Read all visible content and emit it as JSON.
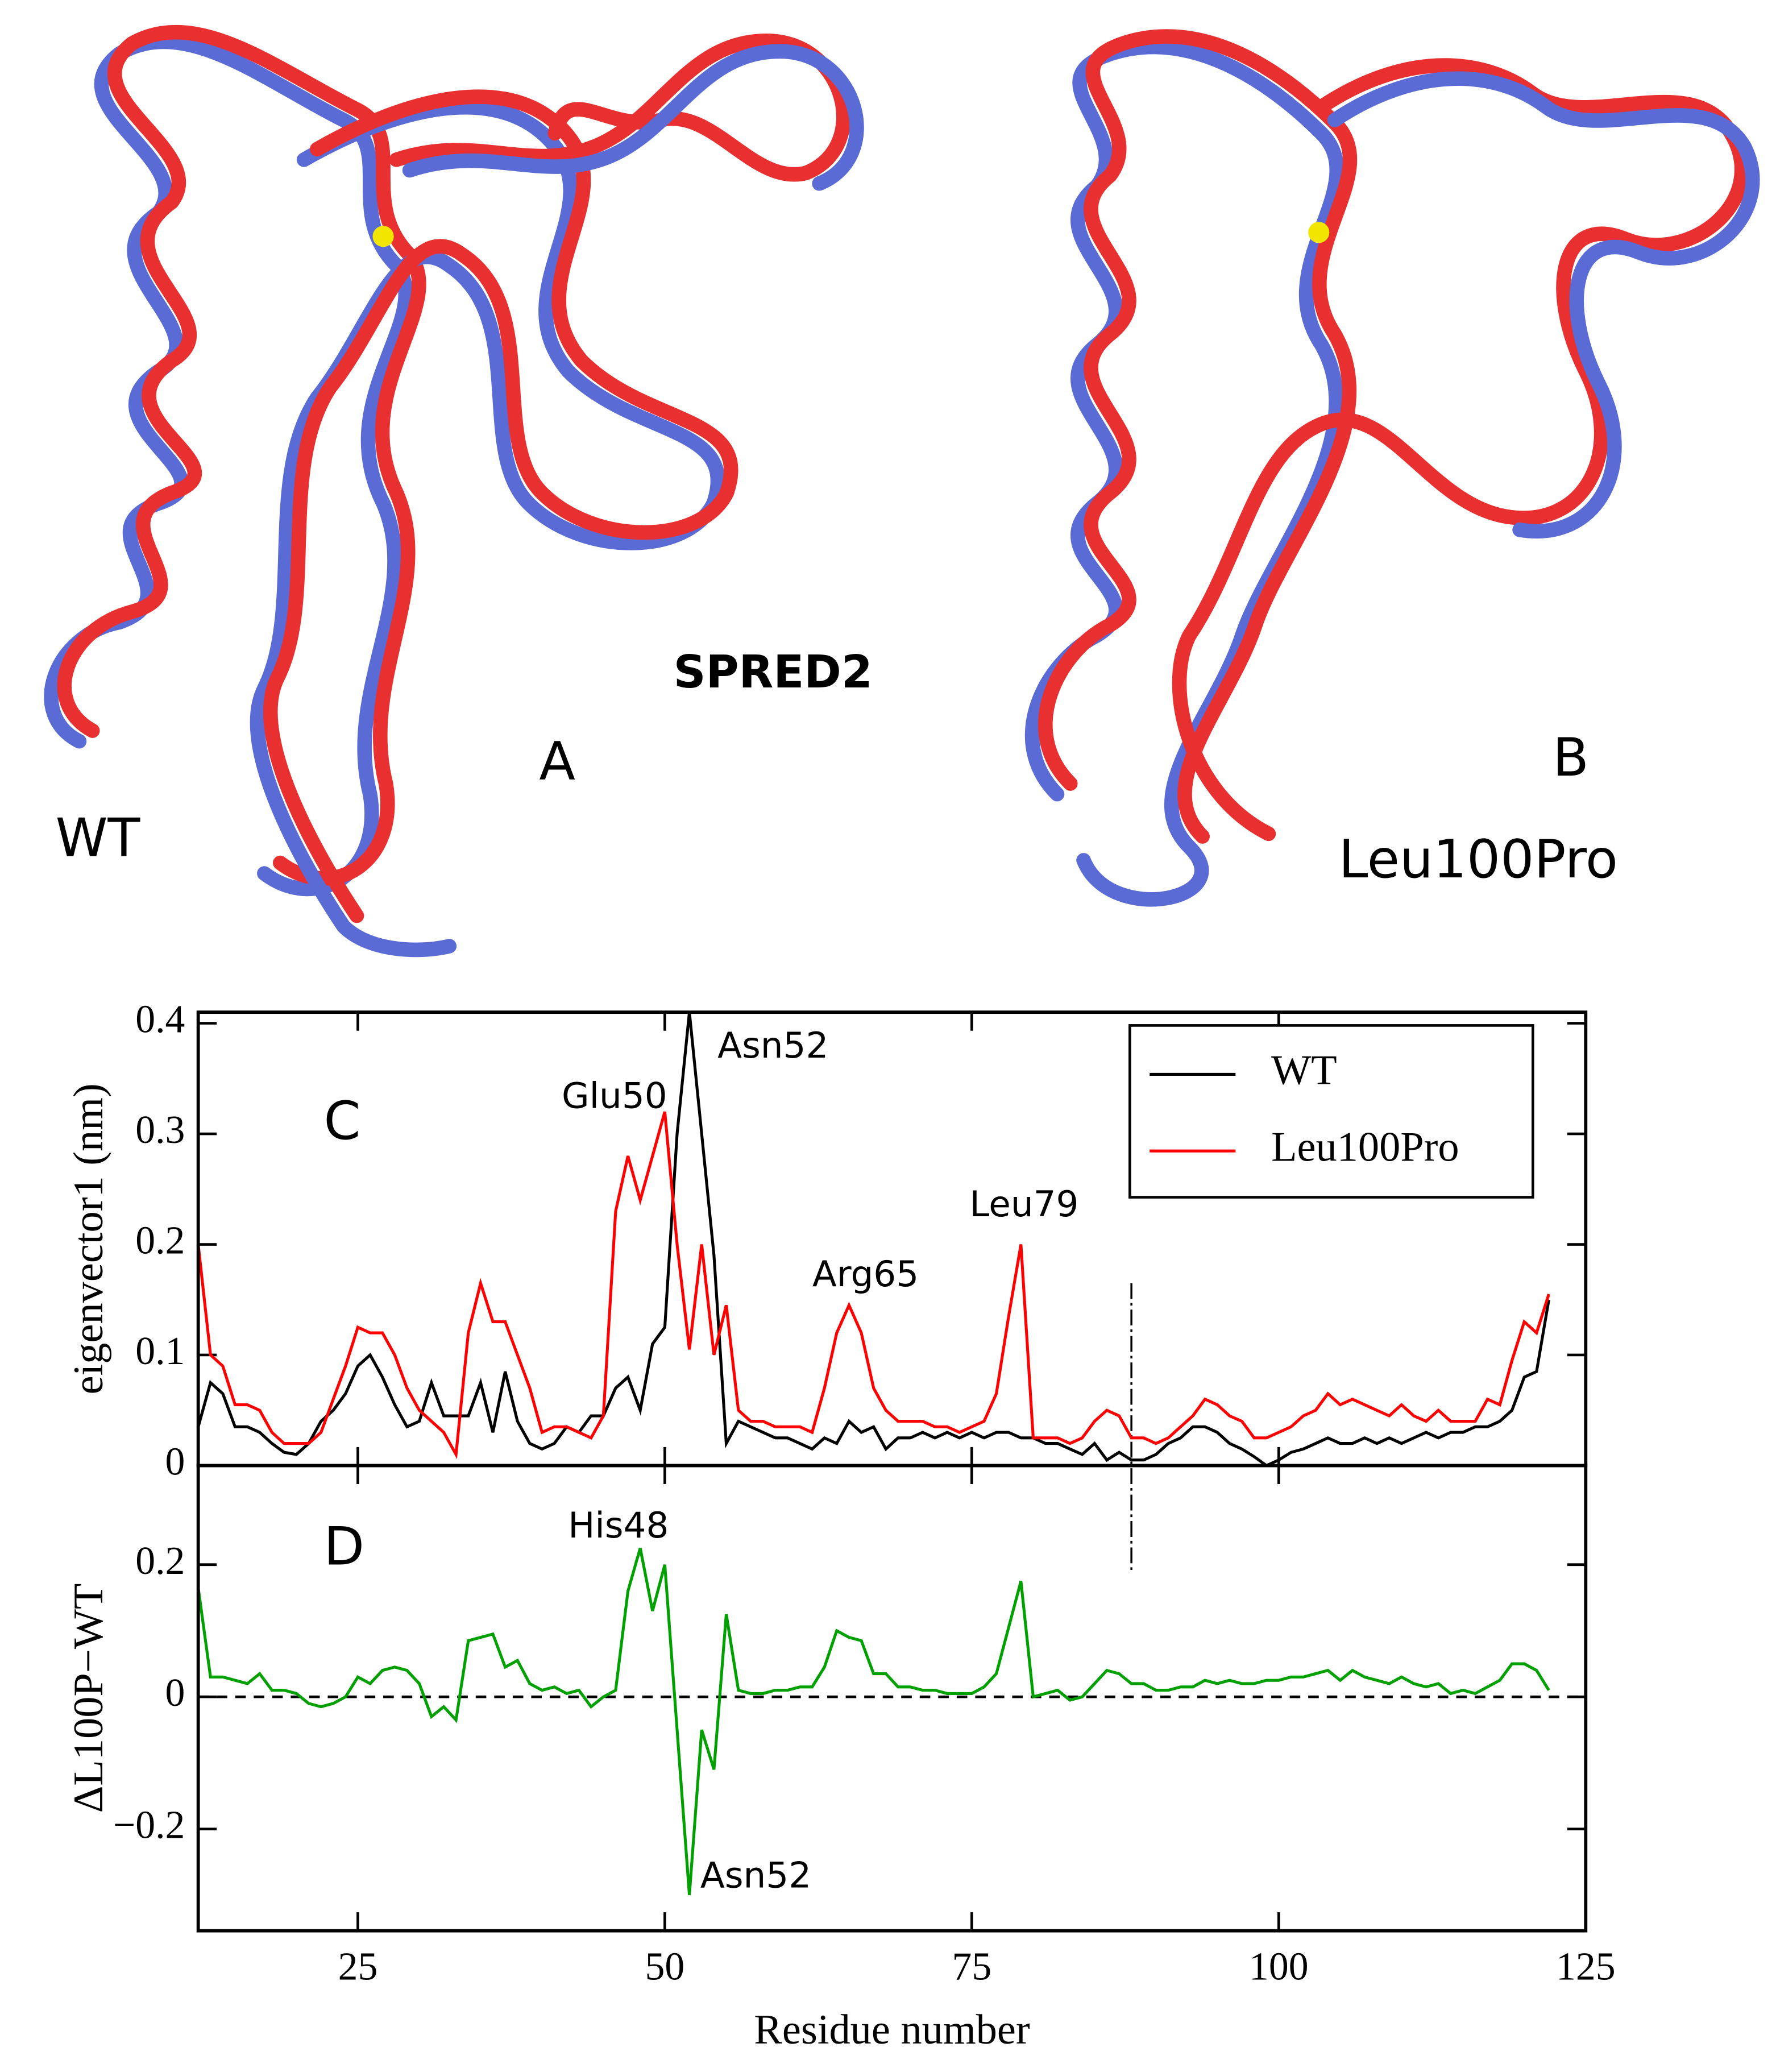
{
  "structures": {
    "title": "SPRED2",
    "panels": [
      {
        "label": "A",
        "name": "WT"
      },
      {
        "label": "B",
        "name": "Leu100Pro"
      }
    ]
  },
  "chart_data": [
    {
      "type": "line",
      "label": "C",
      "ylabel": "eigenvector1 (nm)",
      "x": [
        12,
        13,
        14,
        15,
        16,
        17,
        18,
        19,
        20,
        21,
        22,
        23,
        24,
        25,
        26,
        27,
        28,
        29,
        30,
        31,
        32,
        33,
        34,
        35,
        36,
        37,
        38,
        39,
        40,
        41,
        42,
        43,
        44,
        45,
        46,
        47,
        48,
        49,
        50,
        51,
        52,
        53,
        54,
        55,
        56,
        57,
        58,
        59,
        60,
        61,
        62,
        63,
        64,
        65,
        66,
        67,
        68,
        69,
        70,
        71,
        72,
        73,
        74,
        75,
        76,
        77,
        78,
        79,
        80,
        81,
        82,
        83,
        84,
        85,
        86,
        87,
        88,
        89,
        90,
        91,
        92,
        93,
        94,
        95,
        96,
        97,
        98,
        99,
        100,
        101,
        102,
        103,
        104,
        105,
        106,
        107,
        108,
        109,
        110,
        111,
        112,
        113,
        114,
        115,
        116,
        117,
        118,
        119,
        120,
        121,
        122
      ],
      "series": [
        {
          "name": "WT",
          "color": "#000000",
          "values": [
            0.035,
            0.075,
            0.065,
            0.035,
            0.035,
            0.03,
            0.02,
            0.012,
            0.01,
            0.02,
            0.04,
            0.05,
            0.065,
            0.09,
            0.1,
            0.08,
            0.055,
            0.035,
            0.04,
            0.075,
            0.045,
            0.045,
            0.045,
            0.075,
            0.03,
            0.085,
            0.04,
            0.02,
            0.015,
            0.02,
            0.035,
            0.03,
            0.045,
            0.045,
            0.07,
            0.08,
            0.05,
            0.11,
            0.125,
            0.3,
            0.41,
            0.3,
            0.19,
            0.02,
            0.04,
            0.035,
            0.03,
            0.025,
            0.025,
            0.02,
            0.015,
            0.025,
            0.02,
            0.04,
            0.03,
            0.035,
            0.015,
            0.025,
            0.025,
            0.03,
            0.025,
            0.03,
            0.025,
            0.03,
            0.025,
            0.03,
            0.03,
            0.025,
            0.025,
            0.02,
            0.02,
            0.015,
            0.01,
            0.02,
            0.005,
            0.012,
            0.005,
            0.005,
            0.01,
            0.02,
            0.025,
            0.035,
            0.035,
            0.03,
            0.02,
            0.015,
            0.008,
            0.0,
            0.005,
            0.012,
            0.015,
            0.02,
            0.025,
            0.02,
            0.02,
            0.025,
            0.02,
            0.025,
            0.02,
            0.025,
            0.03,
            0.025,
            0.03,
            0.03,
            0.035,
            0.035,
            0.04,
            0.05,
            0.08,
            0.085,
            0.15
          ]
        },
        {
          "name": "Leu100Pro",
          "color": "#ff0000",
          "values": [
            0.2,
            0.1,
            0.09,
            0.055,
            0.055,
            0.05,
            0.03,
            0.02,
            0.02,
            0.02,
            0.03,
            0.06,
            0.09,
            0.125,
            0.12,
            0.12,
            0.1,
            0.07,
            0.05,
            0.04,
            0.03,
            0.01,
            0.12,
            0.165,
            0.13,
            0.13,
            0.1,
            0.07,
            0.03,
            0.035,
            0.035,
            0.03,
            0.025,
            0.045,
            0.23,
            0.28,
            0.24,
            0.28,
            0.32,
            0.2,
            0.105,
            0.2,
            0.1,
            0.145,
            0.05,
            0.04,
            0.04,
            0.035,
            0.035,
            0.035,
            0.03,
            0.07,
            0.12,
            0.145,
            0.12,
            0.07,
            0.05,
            0.04,
            0.04,
            0.04,
            0.035,
            0.035,
            0.03,
            0.035,
            0.04,
            0.065,
            0.135,
            0.2,
            0.025,
            0.025,
            0.025,
            0.02,
            0.025,
            0.04,
            0.05,
            0.045,
            0.025,
            0.025,
            0.02,
            0.025,
            0.035,
            0.045,
            0.06,
            0.055,
            0.045,
            0.04,
            0.025,
            0.025,
            0.03,
            0.035,
            0.045,
            0.05,
            0.065,
            0.055,
            0.06,
            0.055,
            0.05,
            0.045,
            0.055,
            0.045,
            0.04,
            0.05,
            0.04,
            0.04,
            0.04,
            0.06,
            0.055,
            0.095,
            0.13,
            0.12,
            0.155
          ]
        }
      ],
      "xlim": [
        12,
        125
      ],
      "ylim": [
        0,
        0.41
      ],
      "yticks": [
        0,
        0.1,
        0.2,
        0.3,
        0.4
      ],
      "vline": 88,
      "legend": "upper right",
      "annotations": [
        "Glu50",
        "Asn52",
        "Arg65",
        "Leu79"
      ]
    },
    {
      "type": "line",
      "label": "D",
      "xlabel": "Residue number",
      "ylabel": "ΔL100P−WT",
      "x": [
        12,
        13,
        14,
        15,
        16,
        17,
        18,
        19,
        20,
        21,
        22,
        23,
        24,
        25,
        26,
        27,
        28,
        29,
        30,
        31,
        32,
        33,
        34,
        35,
        36,
        37,
        38,
        39,
        40,
        41,
        42,
        43,
        44,
        45,
        46,
        47,
        48,
        49,
        50,
        51,
        52,
        53,
        54,
        55,
        56,
        57,
        58,
        59,
        60,
        61,
        62,
        63,
        64,
        65,
        66,
        67,
        68,
        69,
        70,
        71,
        72,
        73,
        74,
        75,
        76,
        77,
        78,
        79,
        80,
        81,
        82,
        83,
        84,
        85,
        86,
        87,
        88,
        89,
        90,
        91,
        92,
        93,
        94,
        95,
        96,
        97,
        98,
        99,
        100,
        101,
        102,
        103,
        104,
        105,
        106,
        107,
        108,
        109,
        110,
        111,
        112,
        113,
        114,
        115,
        116,
        117,
        118,
        119,
        120,
        121,
        122
      ],
      "series": [
        {
          "color": "#00a000",
          "values": [
            0.165,
            0.03,
            0.03,
            0.025,
            0.02,
            0.035,
            0.01,
            0.01,
            0.005,
            -0.01,
            -0.015,
            -0.01,
            0.0,
            0.03,
            0.02,
            0.04,
            0.045,
            0.04,
            0.02,
            -0.03,
            -0.015,
            -0.035,
            0.085,
            0.09,
            0.095,
            0.045,
            0.055,
            0.02,
            0.01,
            0.015,
            0.005,
            0.01,
            -0.015,
            0.0,
            0.01,
            0.16,
            0.225,
            0.13,
            0.2,
            -0.05,
            -0.3,
            -0.05,
            -0.11,
            0.125,
            0.01,
            0.005,
            0.005,
            0.01,
            0.01,
            0.015,
            0.015,
            0.045,
            0.1,
            0.09,
            0.085,
            0.035,
            0.035,
            0.015,
            0.015,
            0.01,
            0.01,
            0.005,
            0.005,
            0.005,
            0.015,
            0.035,
            0.105,
            0.175,
            0.0,
            0.005,
            0.01,
            -0.005,
            0.0,
            0.02,
            0.04,
            0.035,
            0.02,
            0.02,
            0.01,
            0.01,
            0.015,
            0.015,
            0.025,
            0.02,
            0.025,
            0.02,
            0.02,
            0.025,
            0.025,
            0.03,
            0.03,
            0.035,
            0.04,
            0.025,
            0.04,
            0.03,
            0.025,
            0.02,
            0.03,
            0.02,
            0.015,
            0.02,
            0.005,
            0.01,
            0.005,
            0.015,
            0.025,
            0.05,
            0.05,
            0.04,
            0.01
          ]
        }
      ],
      "xlim": [
        12,
        125
      ],
      "ylim": [
        -0.354,
        0.35
      ],
      "xticks": [
        25,
        50,
        75,
        100,
        125
      ],
      "yticks": [
        {
          "value": -0.2,
          "label": "−0.2"
        },
        0,
        0.2
      ],
      "hline": 0,
      "annotations": [
        "His48",
        "Asn52"
      ]
    }
  ]
}
